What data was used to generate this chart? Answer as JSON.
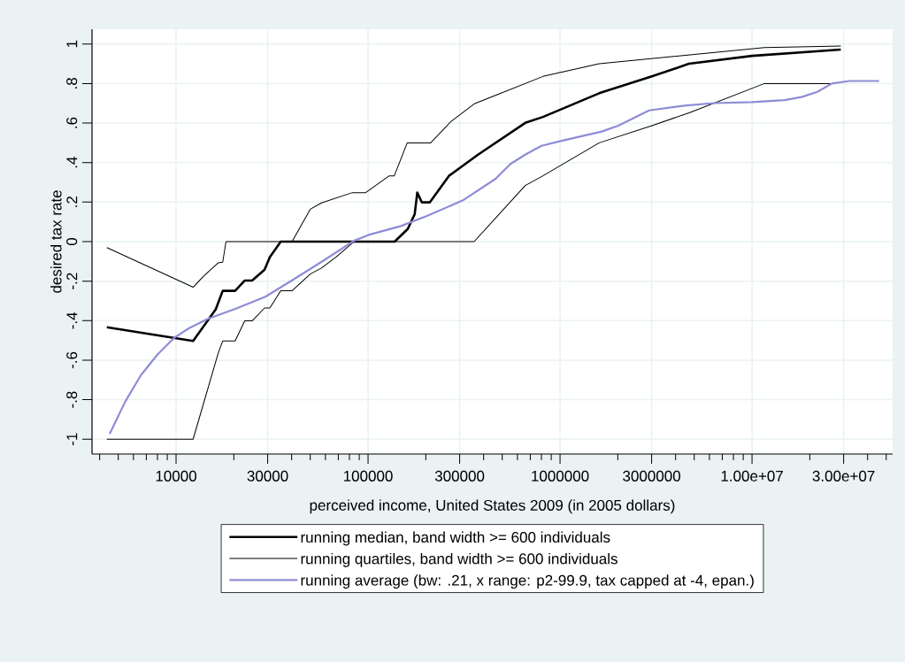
{
  "chart_data": {
    "type": "line",
    "xlabel": "perceived income, United States 2009 (in 2005 dollars)",
    "ylabel": "desired tax rate",
    "log": "x",
    "grid": true,
    "legend": "bottom",
    "xlim": [
      3650,
      54000000
    ],
    "ylim": [
      -1.075,
      1.075
    ],
    "xticks": [
      {
        "value": 4000,
        "label": null
      },
      {
        "value": 5000,
        "label": null
      },
      {
        "value": 6000,
        "label": null
      },
      {
        "value": 7000,
        "label": null
      },
      {
        "value": 8000,
        "label": null
      },
      {
        "value": 9000,
        "label": null
      },
      10000,
      {
        "value": 20000,
        "label": null
      },
      30000,
      {
        "value": 40000,
        "label": null
      },
      {
        "value": 50000,
        "label": null
      },
      {
        "value": 60000,
        "label": null
      },
      {
        "value": 70000,
        "label": null
      },
      {
        "value": 80000,
        "label": null
      },
      {
        "value": 90000,
        "label": null
      },
      100000,
      {
        "value": 200000,
        "label": null
      },
      300000,
      {
        "value": 400000,
        "label": null
      },
      {
        "value": 500000,
        "label": null
      },
      {
        "value": 600000,
        "label": null
      },
      {
        "value": 700000,
        "label": null
      },
      {
        "value": 800000,
        "label": null
      },
      {
        "value": 900000,
        "label": null
      },
      1000000,
      {
        "value": 2000000,
        "label": null
      },
      3000000,
      {
        "value": 4000000,
        "label": null
      },
      {
        "value": 5000000,
        "label": null
      },
      {
        "value": 6000000,
        "label": null
      },
      {
        "value": 7000000,
        "label": null
      },
      {
        "value": 8000000,
        "label": null
      },
      {
        "value": 9000000,
        "label": null
      },
      {
        "value": 10000000,
        "label": "1.00e+07"
      },
      {
        "value": 20000000,
        "label": null
      },
      {
        "value": 30000000,
        "label": "3.00e+07"
      },
      {
        "value": 40000000,
        "label": null
      },
      {
        "value": 50000000,
        "label": null
      }
    ],
    "yticks": [
      {
        "value": -1,
        "label": "-1"
      },
      {
        "value": -0.8,
        "label": "-.8"
      },
      {
        "value": -0.6,
        "label": "-.6"
      },
      {
        "value": -0.4,
        "label": "-.4"
      },
      {
        "value": -0.2,
        "label": "-.2"
      },
      0,
      {
        "value": 0.2,
        "label": ".2"
      },
      {
        "value": 0.4,
        "label": ".4"
      },
      {
        "value": 0.6,
        "label": ".6"
      },
      {
        "value": 0.8,
        "label": ".8"
      },
      1
    ],
    "series": [
      {
        "name": "running median, band width >= 600 individuals",
        "color": "#000000",
        "x": [
          4360,
          12270,
          16100,
          17500,
          20300,
          22800,
          24900,
          28900,
          30800,
          35100,
          137500,
          161000,
          175000,
          180500,
          190500,
          210000,
          264000,
          374000,
          659000,
          815000,
          1600000,
          3010000,
          4690000,
          10000000,
          29000000
        ],
        "values": [
          -0.433,
          -0.503,
          -0.343,
          -0.249,
          -0.249,
          -0.197,
          -0.197,
          -0.142,
          -0.078,
          0,
          0,
          0.064,
          0.139,
          0.248,
          0.199,
          0.199,
          0.333,
          0.44,
          0.601,
          0.631,
          0.751,
          0.836,
          0.9,
          0.94,
          0.972
        ]
      },
      {
        "name": "running quartiles, band width >= 600 individuals",
        "color": "#000000",
        "x": [
          4360,
          12270,
          13900,
          16600,
          17500,
          18200,
          40200,
          50000,
          57200,
          82900,
          97200,
          129000,
          137000,
          160000,
          212000,
          271000,
          360000,
          461000,
          815000,
          1600000,
          11600000,
          29000000
        ],
        "values": [
          -0.03,
          -0.231,
          -0.175,
          -0.107,
          -0.104,
          0,
          0,
          0.164,
          0.196,
          0.248,
          0.248,
          0.333,
          0.333,
          0.5,
          0.5,
          0.609,
          0.699,
          0.74,
          0.836,
          0.9,
          0.982,
          0.99
        ]
      },
      {
        "color": "#000000",
        "x": [
          4360,
          12270,
          16600,
          17500,
          20300,
          22800,
          24900,
          28900,
          30800,
          35100,
          40200,
          50000,
          57200,
          68200,
          84300,
          357000,
          659000,
          815000,
          1600000,
          3010000,
          4770000,
          11600000,
          25600000
        ],
        "values": [
          -1,
          -1,
          -0.563,
          -0.503,
          -0.503,
          -0.401,
          -0.401,
          -0.336,
          -0.336,
          -0.249,
          -0.249,
          -0.164,
          -0.134,
          -0.078,
          0,
          0,
          0.284,
          0.333,
          0.5,
          0.587,
          0.654,
          0.8,
          0.8
        ]
      },
      {
        "name": "running average (bw: .21, x range: p2-99.9, tax capped at -4, epan.)",
        "color": "#8e8cd6",
        "x": [
          4510,
          5440,
          6570,
          8030,
          9750,
          11650,
          14650,
          20500,
          29200,
          41600,
          59300,
          84300,
          100700,
          148600,
          204000,
          312000,
          462000,
          552000,
          659000,
          800000,
          1007000,
          1650000,
          2010000,
          2910000,
          4450000,
          6340000,
          10000000,
          14800000,
          18300000,
          21900000,
          26100000,
          32200000,
          45900000
        ],
        "values": [
          -0.973,
          -0.809,
          -0.675,
          -0.57,
          -0.488,
          -0.439,
          -0.391,
          -0.339,
          -0.279,
          -0.187,
          -0.093,
          0.004,
          0.034,
          0.079,
          0.131,
          0.209,
          0.318,
          0.393,
          0.44,
          0.485,
          0.509,
          0.557,
          0.587,
          0.664,
          0.688,
          0.701,
          0.706,
          0.716,
          0.733,
          0.758,
          0.8,
          0.813,
          0.813
        ]
      }
    ]
  }
}
